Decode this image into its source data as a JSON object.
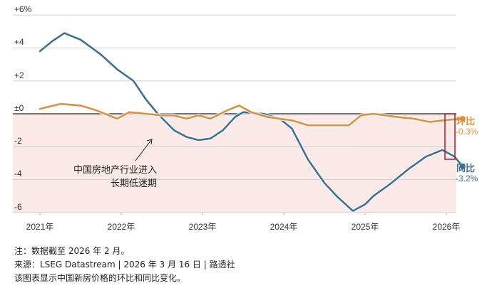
{
  "chart_data": {
    "type": "line",
    "title": "",
    "xlabel": "",
    "ylabel": "%",
    "ylim": [
      -6,
      6
    ],
    "y_ticks": [
      "+6%",
      "+4",
      "+2",
      "±0",
      "-2",
      "-4",
      "-6"
    ],
    "x_ticks": [
      "2021年",
      "2022年",
      "2023年",
      "2024年",
      "2025年",
      "2026年"
    ],
    "grid": true,
    "negative_region_shaded": true,
    "legend_position": "right, inline labels",
    "series": [
      {
        "name": "同比",
        "color": "#3d6f97",
        "last_value_label": "-3.2%",
        "points": [
          [
            2021.0,
            3.8
          ],
          [
            2021.15,
            4.4
          ],
          [
            2021.3,
            4.9
          ],
          [
            2021.5,
            4.5
          ],
          [
            2021.75,
            3.6
          ],
          [
            2021.95,
            2.7
          ],
          [
            2022.15,
            2.0
          ],
          [
            2022.3,
            0.9
          ],
          [
            2022.45,
            0.0
          ],
          [
            2022.65,
            -1.0
          ],
          [
            2022.8,
            -1.4
          ],
          [
            2022.95,
            -1.6
          ],
          [
            2023.1,
            -1.5
          ],
          [
            2023.25,
            -1.0
          ],
          [
            2023.4,
            -0.2
          ],
          [
            2023.5,
            0.1
          ],
          [
            2023.75,
            0.0
          ],
          [
            2023.95,
            -0.3
          ],
          [
            2024.1,
            -0.9
          ],
          [
            2024.3,
            -2.8
          ],
          [
            2024.5,
            -4.2
          ],
          [
            2024.65,
            -5.0
          ],
          [
            2024.85,
            -5.9
          ],
          [
            2025.0,
            -5.5
          ],
          [
            2025.1,
            -5.0
          ],
          [
            2025.3,
            -4.3
          ],
          [
            2025.55,
            -3.3
          ],
          [
            2025.75,
            -2.6
          ],
          [
            2025.95,
            -2.2
          ],
          [
            2026.1,
            -2.6
          ],
          [
            2026.2,
            -3.2
          ]
        ]
      },
      {
        "name": "环比",
        "color": "#d9913f",
        "last_value_label": "-0.3%",
        "points": [
          [
            2021.0,
            0.3
          ],
          [
            2021.25,
            0.6
          ],
          [
            2021.5,
            0.5
          ],
          [
            2021.7,
            0.2
          ],
          [
            2021.95,
            -0.3
          ],
          [
            2022.1,
            0.1
          ],
          [
            2022.3,
            0.0
          ],
          [
            2022.5,
            -0.1
          ],
          [
            2022.65,
            -0.1
          ],
          [
            2022.8,
            -0.3
          ],
          [
            2022.95,
            -0.1
          ],
          [
            2023.1,
            -0.3
          ],
          [
            2023.3,
            0.2
          ],
          [
            2023.45,
            0.5
          ],
          [
            2023.6,
            0.1
          ],
          [
            2023.8,
            -0.2
          ],
          [
            2023.95,
            -0.3
          ],
          [
            2024.1,
            -0.4
          ],
          [
            2024.3,
            -0.7
          ],
          [
            2024.55,
            -0.7
          ],
          [
            2024.8,
            -0.7
          ],
          [
            2024.95,
            -0.1
          ],
          [
            2025.1,
            0.0
          ],
          [
            2025.25,
            -0.1
          ],
          [
            2025.4,
            -0.2
          ],
          [
            2025.6,
            -0.3
          ],
          [
            2025.8,
            -0.5
          ],
          [
            2025.95,
            -0.4
          ],
          [
            2026.2,
            -0.3
          ]
        ]
      }
    ],
    "annotations": [
      "中国房地产行业进入",
      "长期低迷期"
    ]
  },
  "labels": {
    "mom_name": "环比",
    "mom_value": "-0.3%",
    "yoy_name": "同比",
    "yoy_value": "-3.2%",
    "annotation_line1": "中国房地产行业进入",
    "annotation_line2": "长期低迷期"
  },
  "notes": {
    "line1": "注：数据截至 2026 年 2 月。",
    "line2": "来源：LSEG Datastream | 2026 年 3 月 16 日 | 路透社",
    "line3": "该图表显示中国新房价格的环比和同比变化。"
  },
  "colors": {
    "yoy": "#3d6f97",
    "mom": "#d9913f",
    "negative_fill": "#fbe9e8",
    "highlight_box": "#a0262d"
  }
}
